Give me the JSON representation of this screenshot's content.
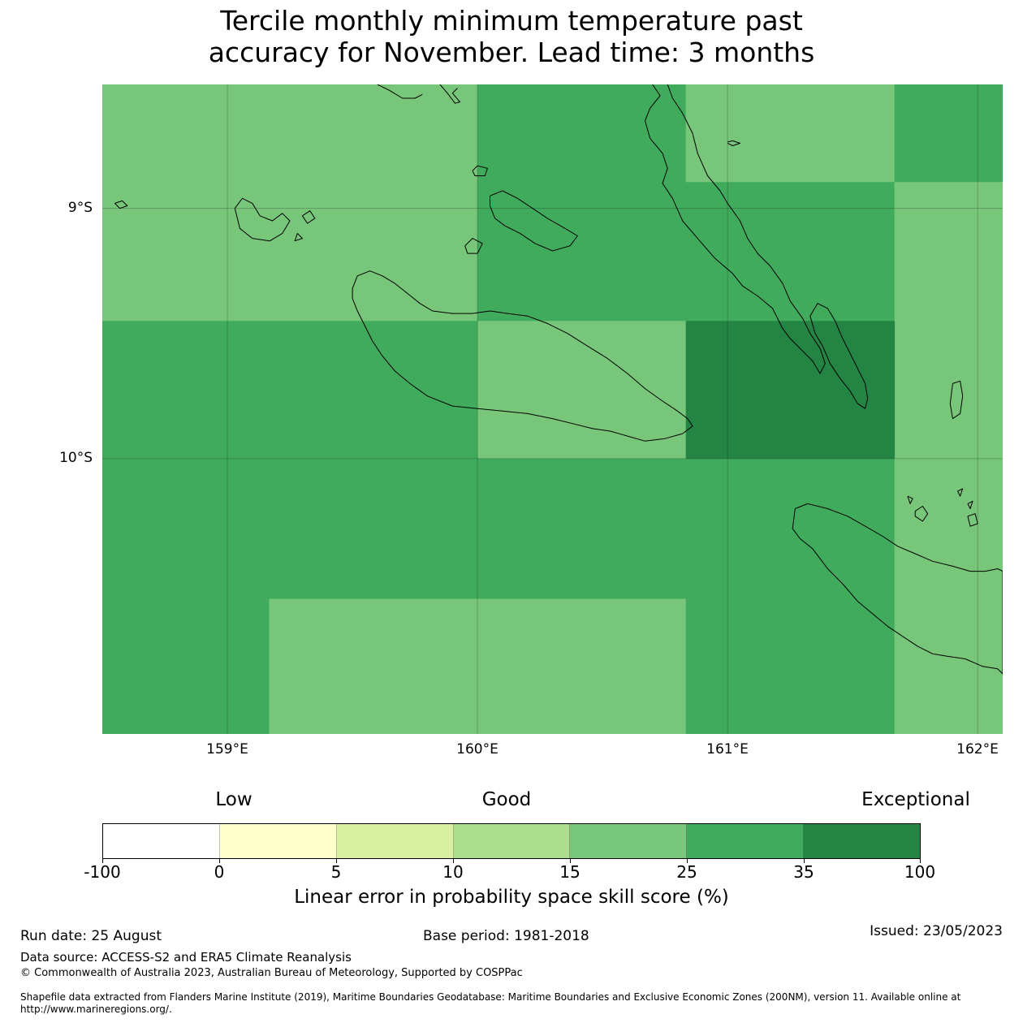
{
  "title": {
    "line1": "Tercile monthly minimum temperature past",
    "line2": "accuracy for November. Lead time: 3 months"
  },
  "map": {
    "lat_labels": [
      "9°S",
      "10°S"
    ],
    "lon_labels": [
      "159°E",
      "160°E",
      "161°E",
      "162°E"
    ],
    "extent": {
      "lon_min": 158.5,
      "lon_max": 162.1,
      "lat_north": -8.505,
      "lat_south": -11.1
    },
    "grid_lon": [
      159,
      160,
      161,
      162
    ],
    "grid_lat": [
      -9,
      -10
    ],
    "cells": [
      {
        "lon0": 158.5,
        "lon1": 160.0,
        "lat0": -8.505,
        "lat1": -9.45,
        "bin": 4
      },
      {
        "lon0": 160.0,
        "lon1": 160.833,
        "lat0": -8.505,
        "lat1": -9.45,
        "bin": 5
      },
      {
        "lon0": 160.833,
        "lon1": 161.667,
        "lat0": -8.505,
        "lat1": -8.895,
        "bin": 4
      },
      {
        "lon0": 160.833,
        "lon1": 161.667,
        "lat0": -8.895,
        "lat1": -9.45,
        "bin": 5
      },
      {
        "lon0": 161.667,
        "lon1": 162.1,
        "lat0": -8.505,
        "lat1": -8.895,
        "bin": 5
      },
      {
        "lon0": 161.667,
        "lon1": 162.1,
        "lat0": -8.895,
        "lat1": -10.0,
        "bin": 4
      },
      {
        "lon0": 158.5,
        "lon1": 160.0,
        "lat0": -9.45,
        "lat1": -10.0,
        "bin": 5
      },
      {
        "lon0": 160.0,
        "lon1": 160.833,
        "lat0": -9.45,
        "lat1": -10.0,
        "bin": 4
      },
      {
        "lon0": 160.833,
        "lon1": 161.667,
        "lat0": -9.45,
        "lat1": -10.0,
        "bin": 6
      },
      {
        "lon0": 158.5,
        "lon1": 161.667,
        "lat0": -10.0,
        "lat1": -10.56,
        "bin": 5
      },
      {
        "lon0": 158.5,
        "lon1": 159.167,
        "lat0": -10.56,
        "lat1": -11.1,
        "bin": 5
      },
      {
        "lon0": 159.167,
        "lon1": 160.833,
        "lat0": -10.56,
        "lat1": -11.1,
        "bin": 4
      },
      {
        "lon0": 160.833,
        "lon1": 161.667,
        "lat0": -10.56,
        "lat1": -11.1,
        "bin": 5
      },
      {
        "lon0": 161.667,
        "lon1": 162.1,
        "lat0": -10.0,
        "lat1": -11.1,
        "bin": 4
      }
    ],
    "coastlines": [
      [
        [
          159.6,
          -8.505
        ],
        [
          159.65,
          -8.53
        ],
        [
          159.7,
          -8.56
        ],
        [
          159.75,
          -8.56
        ],
        [
          159.78,
          -8.545
        ]
      ],
      [
        [
          159.85,
          -8.505
        ],
        [
          159.88,
          -8.54
        ],
        [
          159.91,
          -8.58
        ],
        [
          159.93,
          -8.575
        ],
        [
          159.9,
          -8.54
        ],
        [
          159.92,
          -8.52
        ]
      ],
      [
        [
          160.7,
          -8.505
        ],
        [
          160.73,
          -8.55
        ],
        [
          160.69,
          -8.6
        ],
        [
          160.67,
          -8.65
        ],
        [
          160.69,
          -8.72
        ],
        [
          160.74,
          -8.78
        ],
        [
          160.76,
          -8.84
        ],
        [
          160.74,
          -8.9
        ],
        [
          160.78,
          -8.96
        ],
        [
          160.82,
          -9.05
        ],
        [
          160.88,
          -9.12
        ],
        [
          160.95,
          -9.2
        ],
        [
          161.02,
          -9.26
        ],
        [
          161.06,
          -9.31
        ],
        [
          161.12,
          -9.35
        ],
        [
          161.18,
          -9.4
        ],
        [
          161.22,
          -9.48
        ],
        [
          161.25,
          -9.52
        ],
        [
          161.3,
          -9.57
        ],
        [
          161.34,
          -9.61
        ],
        [
          161.37,
          -9.66
        ],
        [
          161.39,
          -9.62
        ],
        [
          161.37,
          -9.56
        ],
        [
          161.33,
          -9.5
        ],
        [
          161.3,
          -9.44
        ],
        [
          161.25,
          -9.37
        ],
        [
          161.22,
          -9.3
        ],
        [
          161.17,
          -9.23
        ],
        [
          161.12,
          -9.18
        ],
        [
          161.08,
          -9.12
        ],
        [
          161.05,
          -9.05
        ],
        [
          161.0,
          -8.98
        ],
        [
          160.97,
          -8.93
        ],
        [
          160.92,
          -8.87
        ],
        [
          160.88,
          -8.78
        ],
        [
          160.86,
          -8.7
        ],
        [
          160.82,
          -8.62
        ],
        [
          160.78,
          -8.56
        ],
        [
          160.76,
          -8.505
        ]
      ],
      [
        [
          161.0,
          -8.735
        ],
        [
          161.02,
          -8.73
        ],
        [
          161.05,
          -8.74
        ],
        [
          161.02,
          -8.75
        ],
        [
          161.0,
          -8.74
        ]
      ],
      [
        [
          161.33,
          -9.43
        ],
        [
          161.36,
          -9.38
        ],
        [
          161.4,
          -9.4
        ],
        [
          161.43,
          -9.45
        ],
        [
          161.46,
          -9.52
        ],
        [
          161.49,
          -9.58
        ],
        [
          161.52,
          -9.64
        ],
        [
          161.55,
          -9.7
        ],
        [
          161.56,
          -9.76
        ],
        [
          161.55,
          -9.8
        ],
        [
          161.52,
          -9.78
        ],
        [
          161.49,
          -9.73
        ],
        [
          161.45,
          -9.68
        ],
        [
          161.41,
          -9.62
        ],
        [
          161.38,
          -9.55
        ],
        [
          161.35,
          -9.5
        ],
        [
          161.33,
          -9.43
        ]
      ],
      [
        [
          159.5,
          -9.32
        ],
        [
          159.52,
          -9.27
        ],
        [
          159.57,
          -9.25
        ],
        [
          159.62,
          -9.27
        ],
        [
          159.67,
          -9.3
        ],
        [
          159.72,
          -9.34
        ],
        [
          159.77,
          -9.38
        ],
        [
          159.82,
          -9.41
        ],
        [
          159.9,
          -9.42
        ],
        [
          159.98,
          -9.42
        ],
        [
          160.05,
          -9.41
        ],
        [
          160.12,
          -9.42
        ],
        [
          160.2,
          -9.43
        ],
        [
          160.28,
          -9.46
        ],
        [
          160.36,
          -9.5
        ],
        [
          160.44,
          -9.55
        ],
        [
          160.52,
          -9.6
        ],
        [
          160.6,
          -9.66
        ],
        [
          160.67,
          -9.72
        ],
        [
          160.74,
          -9.77
        ],
        [
          160.8,
          -9.81
        ],
        [
          160.84,
          -9.84
        ],
        [
          160.86,
          -9.87
        ],
        [
          160.82,
          -9.9
        ],
        [
          160.75,
          -9.92
        ],
        [
          160.67,
          -9.93
        ],
        [
          160.6,
          -9.91
        ],
        [
          160.53,
          -9.89
        ],
        [
          160.46,
          -9.88
        ],
        [
          160.38,
          -9.86
        ],
        [
          160.3,
          -9.84
        ],
        [
          160.2,
          -9.82
        ],
        [
          160.1,
          -9.81
        ],
        [
          160.0,
          -9.8
        ],
        [
          159.9,
          -9.79
        ],
        [
          159.8,
          -9.75
        ],
        [
          159.73,
          -9.7
        ],
        [
          159.67,
          -9.65
        ],
        [
          159.62,
          -9.59
        ],
        [
          159.58,
          -9.53
        ],
        [
          159.55,
          -9.47
        ],
        [
          159.52,
          -9.41
        ],
        [
          159.5,
          -9.36
        ],
        [
          159.5,
          -9.32
        ]
      ],
      [
        [
          159.95,
          -9.15
        ],
        [
          159.98,
          -9.12
        ],
        [
          160.02,
          -9.14
        ],
        [
          160.0,
          -9.18
        ],
        [
          159.96,
          -9.18
        ],
        [
          159.95,
          -9.15
        ]
      ],
      [
        [
          160.05,
          -8.95
        ],
        [
          160.1,
          -8.93
        ],
        [
          160.16,
          -8.96
        ],
        [
          160.22,
          -9.0
        ],
        [
          160.28,
          -9.04
        ],
        [
          160.35,
          -9.08
        ],
        [
          160.4,
          -9.11
        ],
        [
          160.37,
          -9.15
        ],
        [
          160.3,
          -9.17
        ],
        [
          160.23,
          -9.14
        ],
        [
          160.17,
          -9.1
        ],
        [
          160.11,
          -9.07
        ],
        [
          160.07,
          -9.04
        ],
        [
          160.05,
          -8.99
        ],
        [
          160.05,
          -8.95
        ]
      ],
      [
        [
          159.98,
          -8.85
        ],
        [
          160.0,
          -8.83
        ],
        [
          160.04,
          -8.84
        ],
        [
          160.03,
          -8.87
        ],
        [
          159.99,
          -8.87
        ],
        [
          159.98,
          -8.85
        ]
      ],
      [
        [
          158.55,
          -8.98
        ],
        [
          158.58,
          -8.97
        ],
        [
          158.6,
          -8.99
        ],
        [
          158.57,
          -9.0
        ],
        [
          158.55,
          -8.98
        ]
      ],
      [
        [
          159.03,
          -9.0
        ],
        [
          159.06,
          -8.96
        ],
        [
          159.1,
          -8.98
        ],
        [
          159.13,
          -9.03
        ],
        [
          159.18,
          -9.05
        ],
        [
          159.22,
          -9.02
        ],
        [
          159.25,
          -9.05
        ],
        [
          159.22,
          -9.1
        ],
        [
          159.17,
          -9.13
        ],
        [
          159.1,
          -9.12
        ],
        [
          159.05,
          -9.08
        ],
        [
          159.03,
          -9.0
        ]
      ],
      [
        [
          159.3,
          -9.03
        ],
        [
          159.33,
          -9.01
        ],
        [
          159.35,
          -9.04
        ],
        [
          159.32,
          -9.06
        ],
        [
          159.3,
          -9.03
        ]
      ],
      [
        [
          159.28,
          -9.1
        ],
        [
          159.3,
          -9.12
        ],
        [
          159.27,
          -9.13
        ],
        [
          159.28,
          -9.1
        ]
      ],
      [
        [
          161.75,
          -10.21
        ],
        [
          161.78,
          -10.19
        ],
        [
          161.8,
          -10.22
        ],
        [
          161.78,
          -10.25
        ],
        [
          161.75,
          -10.23
        ],
        [
          161.75,
          -10.21
        ]
      ],
      [
        [
          161.72,
          -10.15
        ],
        [
          161.74,
          -10.16
        ],
        [
          161.73,
          -10.18
        ],
        [
          161.72,
          -10.15
        ]
      ],
      [
        [
          161.92,
          -10.13
        ],
        [
          161.94,
          -10.12
        ],
        [
          161.93,
          -10.15
        ],
        [
          161.92,
          -10.13
        ]
      ],
      [
        [
          161.96,
          -10.18
        ],
        [
          161.98,
          -10.17
        ],
        [
          161.97,
          -10.2
        ],
        [
          161.96,
          -10.18
        ]
      ],
      [
        [
          161.96,
          -10.23
        ],
        [
          161.99,
          -10.22
        ],
        [
          162.0,
          -10.26
        ],
        [
          161.97,
          -10.27
        ],
        [
          161.96,
          -10.23
        ]
      ],
      [
        [
          161.9,
          -9.7
        ],
        [
          161.93,
          -9.69
        ],
        [
          161.94,
          -9.75
        ],
        [
          161.93,
          -9.82
        ],
        [
          161.9,
          -9.84
        ],
        [
          161.89,
          -9.78
        ],
        [
          161.9,
          -9.7
        ]
      ],
      [
        [
          161.27,
          -10.2
        ],
        [
          161.32,
          -10.18
        ],
        [
          161.4,
          -10.2
        ],
        [
          161.48,
          -10.23
        ],
        [
          161.55,
          -10.27
        ],
        [
          161.62,
          -10.31
        ],
        [
          161.68,
          -10.35
        ],
        [
          161.75,
          -10.38
        ],
        [
          161.82,
          -10.41
        ],
        [
          161.9,
          -10.43
        ],
        [
          161.97,
          -10.45
        ],
        [
          162.03,
          -10.45
        ],
        [
          162.08,
          -10.44
        ],
        [
          162.1,
          -10.45
        ],
        [
          162.1,
          -10.86
        ],
        [
          162.08,
          -10.84
        ],
        [
          162.02,
          -10.83
        ],
        [
          161.95,
          -10.8
        ],
        [
          161.88,
          -10.79
        ],
        [
          161.82,
          -10.78
        ],
        [
          161.76,
          -10.75
        ],
        [
          161.7,
          -10.71
        ],
        [
          161.64,
          -10.67
        ],
        [
          161.58,
          -10.62
        ],
        [
          161.52,
          -10.57
        ],
        [
          161.46,
          -10.5
        ],
        [
          161.4,
          -10.44
        ],
        [
          161.34,
          -10.36
        ],
        [
          161.29,
          -10.32
        ],
        [
          161.26,
          -10.28
        ],
        [
          161.27,
          -10.2
        ]
      ]
    ]
  },
  "colorbar": {
    "category_labels": [
      "Low",
      "Good",
      "Exceptional"
    ],
    "ticks": [
      "-100",
      "0",
      "5",
      "10",
      "15",
      "25",
      "35",
      "100"
    ],
    "colors": [
      "#ffffff",
      "#ffffcc",
      "#d9f0a3",
      "#addd8e",
      "#78c679",
      "#41ab5d",
      "#238443"
    ],
    "label": "Linear error in probability space skill score (%)"
  },
  "footer": {
    "run_date": "Run date: 25 August",
    "base_period": "Base period: 1981-2018",
    "issued": "Issued: 23/05/2023",
    "data_source": "Data source: ACCESS-S2 and ERA5 Climate Reanalysis",
    "copyright": "© Commonwealth of Australia 2023, Australian Bureau of Meteorology, Supported by COSPPac",
    "shapefile_line1": "Shapefile data extracted from Flanders Marine Institute (2019), Maritime Boundaries Geodatabase: Maritime Boundaries and Exclusive Economic Zones (200NM), version 11. Available online at",
    "shapefile_line2": "http://www.marineregions.org/."
  }
}
